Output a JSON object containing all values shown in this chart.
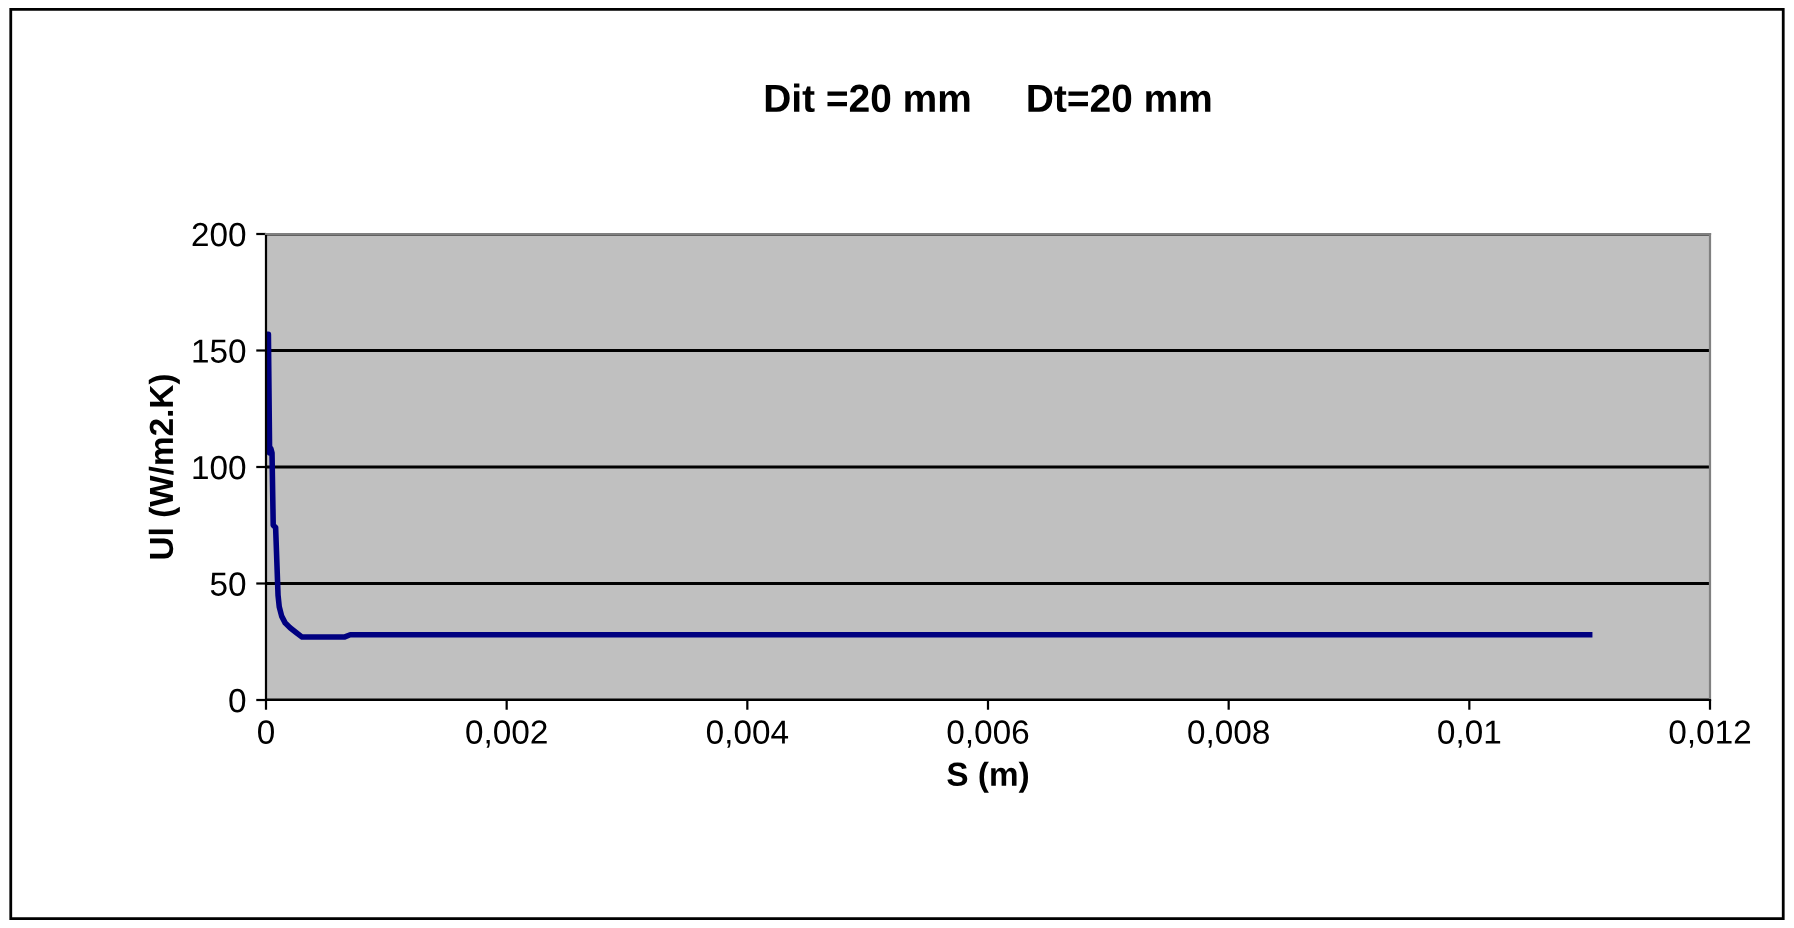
{
  "chart_data": {
    "type": "line",
    "title": "Dit =20 mm     Dt=20 mm",
    "xlabel": "S (m)",
    "ylabel": "Ul (W/m2.K)",
    "series": [
      {
        "color": "#000080",
        "x": [
          0,
          2e-05,
          3e-05,
          4e-05,
          5e-05,
          6e-05,
          8e-05,
          0.0001,
          0.00011,
          0.00013,
          0.00016,
          0.0002,
          0.00025,
          0.0003,
          0.0004,
          0.0005,
          0.00065,
          0.0007,
          0.001,
          0.002,
          0.004,
          0.006,
          0.008,
          0.01,
          0.011
        ],
        "values": [
          157,
          157,
          106,
          108,
          106,
          75,
          74,
          45,
          40,
          36,
          33,
          31,
          29,
          27,
          27,
          27,
          27,
          28,
          28,
          28,
          28,
          28,
          28,
          28,
          28
        ]
      }
    ],
    "xlim": [
      0,
      0.012
    ],
    "xticks": [
      {
        "value": 0,
        "label": "0"
      },
      {
        "value": 0.002,
        "label": "0,002"
      },
      {
        "value": 0.004,
        "label": "0,004"
      },
      {
        "value": 0.006,
        "label": "0,006"
      },
      {
        "value": 0.008,
        "label": "0,008"
      },
      {
        "value": 0.01,
        "label": "0,01"
      },
      {
        "value": 0.012,
        "label": "0,012"
      }
    ],
    "ylim": [
      0,
      200
    ],
    "yticks": [
      0,
      50,
      100,
      150,
      200
    ],
    "grid": "y",
    "legend": false
  }
}
